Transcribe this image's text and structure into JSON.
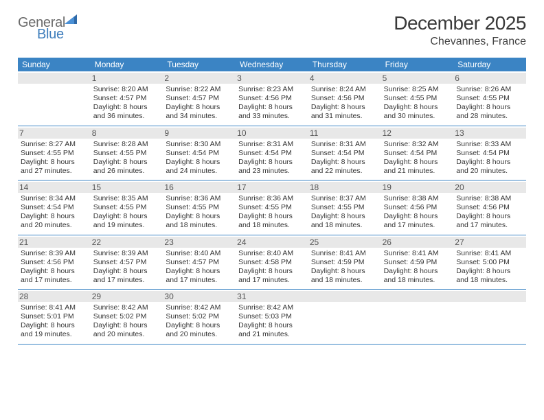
{
  "logo": {
    "word1": "General",
    "word2": "Blue"
  },
  "title": "December 2025",
  "location": "Chevannes, France",
  "colors": {
    "header_bg": "#3b84c4",
    "header_text": "#ffffff",
    "daynum_bg": "#e8e8e8",
    "daynum_text": "#555555",
    "cell_text": "#333333",
    "divider": "#3b84c4",
    "logo_gray": "#6a6a6a",
    "logo_blue": "#3f7ebc",
    "background": "#ffffff"
  },
  "day_headers": [
    "Sunday",
    "Monday",
    "Tuesday",
    "Wednesday",
    "Thursday",
    "Friday",
    "Saturday"
  ],
  "weeks": [
    [
      {
        "n": "",
        "l1": "",
        "l2": "",
        "l3": "",
        "l4": ""
      },
      {
        "n": "1",
        "l1": "Sunrise: 8:20 AM",
        "l2": "Sunset: 4:57 PM",
        "l3": "Daylight: 8 hours",
        "l4": "and 36 minutes."
      },
      {
        "n": "2",
        "l1": "Sunrise: 8:22 AM",
        "l2": "Sunset: 4:57 PM",
        "l3": "Daylight: 8 hours",
        "l4": "and 34 minutes."
      },
      {
        "n": "3",
        "l1": "Sunrise: 8:23 AM",
        "l2": "Sunset: 4:56 PM",
        "l3": "Daylight: 8 hours",
        "l4": "and 33 minutes."
      },
      {
        "n": "4",
        "l1": "Sunrise: 8:24 AM",
        "l2": "Sunset: 4:56 PM",
        "l3": "Daylight: 8 hours",
        "l4": "and 31 minutes."
      },
      {
        "n": "5",
        "l1": "Sunrise: 8:25 AM",
        "l2": "Sunset: 4:55 PM",
        "l3": "Daylight: 8 hours",
        "l4": "and 30 minutes."
      },
      {
        "n": "6",
        "l1": "Sunrise: 8:26 AM",
        "l2": "Sunset: 4:55 PM",
        "l3": "Daylight: 8 hours",
        "l4": "and 28 minutes."
      }
    ],
    [
      {
        "n": "7",
        "l1": "Sunrise: 8:27 AM",
        "l2": "Sunset: 4:55 PM",
        "l3": "Daylight: 8 hours",
        "l4": "and 27 minutes."
      },
      {
        "n": "8",
        "l1": "Sunrise: 8:28 AM",
        "l2": "Sunset: 4:55 PM",
        "l3": "Daylight: 8 hours",
        "l4": "and 26 minutes."
      },
      {
        "n": "9",
        "l1": "Sunrise: 8:30 AM",
        "l2": "Sunset: 4:54 PM",
        "l3": "Daylight: 8 hours",
        "l4": "and 24 minutes."
      },
      {
        "n": "10",
        "l1": "Sunrise: 8:31 AM",
        "l2": "Sunset: 4:54 PM",
        "l3": "Daylight: 8 hours",
        "l4": "and 23 minutes."
      },
      {
        "n": "11",
        "l1": "Sunrise: 8:31 AM",
        "l2": "Sunset: 4:54 PM",
        "l3": "Daylight: 8 hours",
        "l4": "and 22 minutes."
      },
      {
        "n": "12",
        "l1": "Sunrise: 8:32 AM",
        "l2": "Sunset: 4:54 PM",
        "l3": "Daylight: 8 hours",
        "l4": "and 21 minutes."
      },
      {
        "n": "13",
        "l1": "Sunrise: 8:33 AM",
        "l2": "Sunset: 4:54 PM",
        "l3": "Daylight: 8 hours",
        "l4": "and 20 minutes."
      }
    ],
    [
      {
        "n": "14",
        "l1": "Sunrise: 8:34 AM",
        "l2": "Sunset: 4:54 PM",
        "l3": "Daylight: 8 hours",
        "l4": "and 20 minutes."
      },
      {
        "n": "15",
        "l1": "Sunrise: 8:35 AM",
        "l2": "Sunset: 4:55 PM",
        "l3": "Daylight: 8 hours",
        "l4": "and 19 minutes."
      },
      {
        "n": "16",
        "l1": "Sunrise: 8:36 AM",
        "l2": "Sunset: 4:55 PM",
        "l3": "Daylight: 8 hours",
        "l4": "and 18 minutes."
      },
      {
        "n": "17",
        "l1": "Sunrise: 8:36 AM",
        "l2": "Sunset: 4:55 PM",
        "l3": "Daylight: 8 hours",
        "l4": "and 18 minutes."
      },
      {
        "n": "18",
        "l1": "Sunrise: 8:37 AM",
        "l2": "Sunset: 4:55 PM",
        "l3": "Daylight: 8 hours",
        "l4": "and 18 minutes."
      },
      {
        "n": "19",
        "l1": "Sunrise: 8:38 AM",
        "l2": "Sunset: 4:56 PM",
        "l3": "Daylight: 8 hours",
        "l4": "and 17 minutes."
      },
      {
        "n": "20",
        "l1": "Sunrise: 8:38 AM",
        "l2": "Sunset: 4:56 PM",
        "l3": "Daylight: 8 hours",
        "l4": "and 17 minutes."
      }
    ],
    [
      {
        "n": "21",
        "l1": "Sunrise: 8:39 AM",
        "l2": "Sunset: 4:56 PM",
        "l3": "Daylight: 8 hours",
        "l4": "and 17 minutes."
      },
      {
        "n": "22",
        "l1": "Sunrise: 8:39 AM",
        "l2": "Sunset: 4:57 PM",
        "l3": "Daylight: 8 hours",
        "l4": "and 17 minutes."
      },
      {
        "n": "23",
        "l1": "Sunrise: 8:40 AM",
        "l2": "Sunset: 4:57 PM",
        "l3": "Daylight: 8 hours",
        "l4": "and 17 minutes."
      },
      {
        "n": "24",
        "l1": "Sunrise: 8:40 AM",
        "l2": "Sunset: 4:58 PM",
        "l3": "Daylight: 8 hours",
        "l4": "and 17 minutes."
      },
      {
        "n": "25",
        "l1": "Sunrise: 8:41 AM",
        "l2": "Sunset: 4:59 PM",
        "l3": "Daylight: 8 hours",
        "l4": "and 18 minutes."
      },
      {
        "n": "26",
        "l1": "Sunrise: 8:41 AM",
        "l2": "Sunset: 4:59 PM",
        "l3": "Daylight: 8 hours",
        "l4": "and 18 minutes."
      },
      {
        "n": "27",
        "l1": "Sunrise: 8:41 AM",
        "l2": "Sunset: 5:00 PM",
        "l3": "Daylight: 8 hours",
        "l4": "and 18 minutes."
      }
    ],
    [
      {
        "n": "28",
        "l1": "Sunrise: 8:41 AM",
        "l2": "Sunset: 5:01 PM",
        "l3": "Daylight: 8 hours",
        "l4": "and 19 minutes."
      },
      {
        "n": "29",
        "l1": "Sunrise: 8:42 AM",
        "l2": "Sunset: 5:02 PM",
        "l3": "Daylight: 8 hours",
        "l4": "and 20 minutes."
      },
      {
        "n": "30",
        "l1": "Sunrise: 8:42 AM",
        "l2": "Sunset: 5:02 PM",
        "l3": "Daylight: 8 hours",
        "l4": "and 20 minutes."
      },
      {
        "n": "31",
        "l1": "Sunrise: 8:42 AM",
        "l2": "Sunset: 5:03 PM",
        "l3": "Daylight: 8 hours",
        "l4": "and 21 minutes."
      },
      {
        "n": "",
        "l1": "",
        "l2": "",
        "l3": "",
        "l4": ""
      },
      {
        "n": "",
        "l1": "",
        "l2": "",
        "l3": "",
        "l4": ""
      },
      {
        "n": "",
        "l1": "",
        "l2": "",
        "l3": "",
        "l4": ""
      }
    ]
  ]
}
